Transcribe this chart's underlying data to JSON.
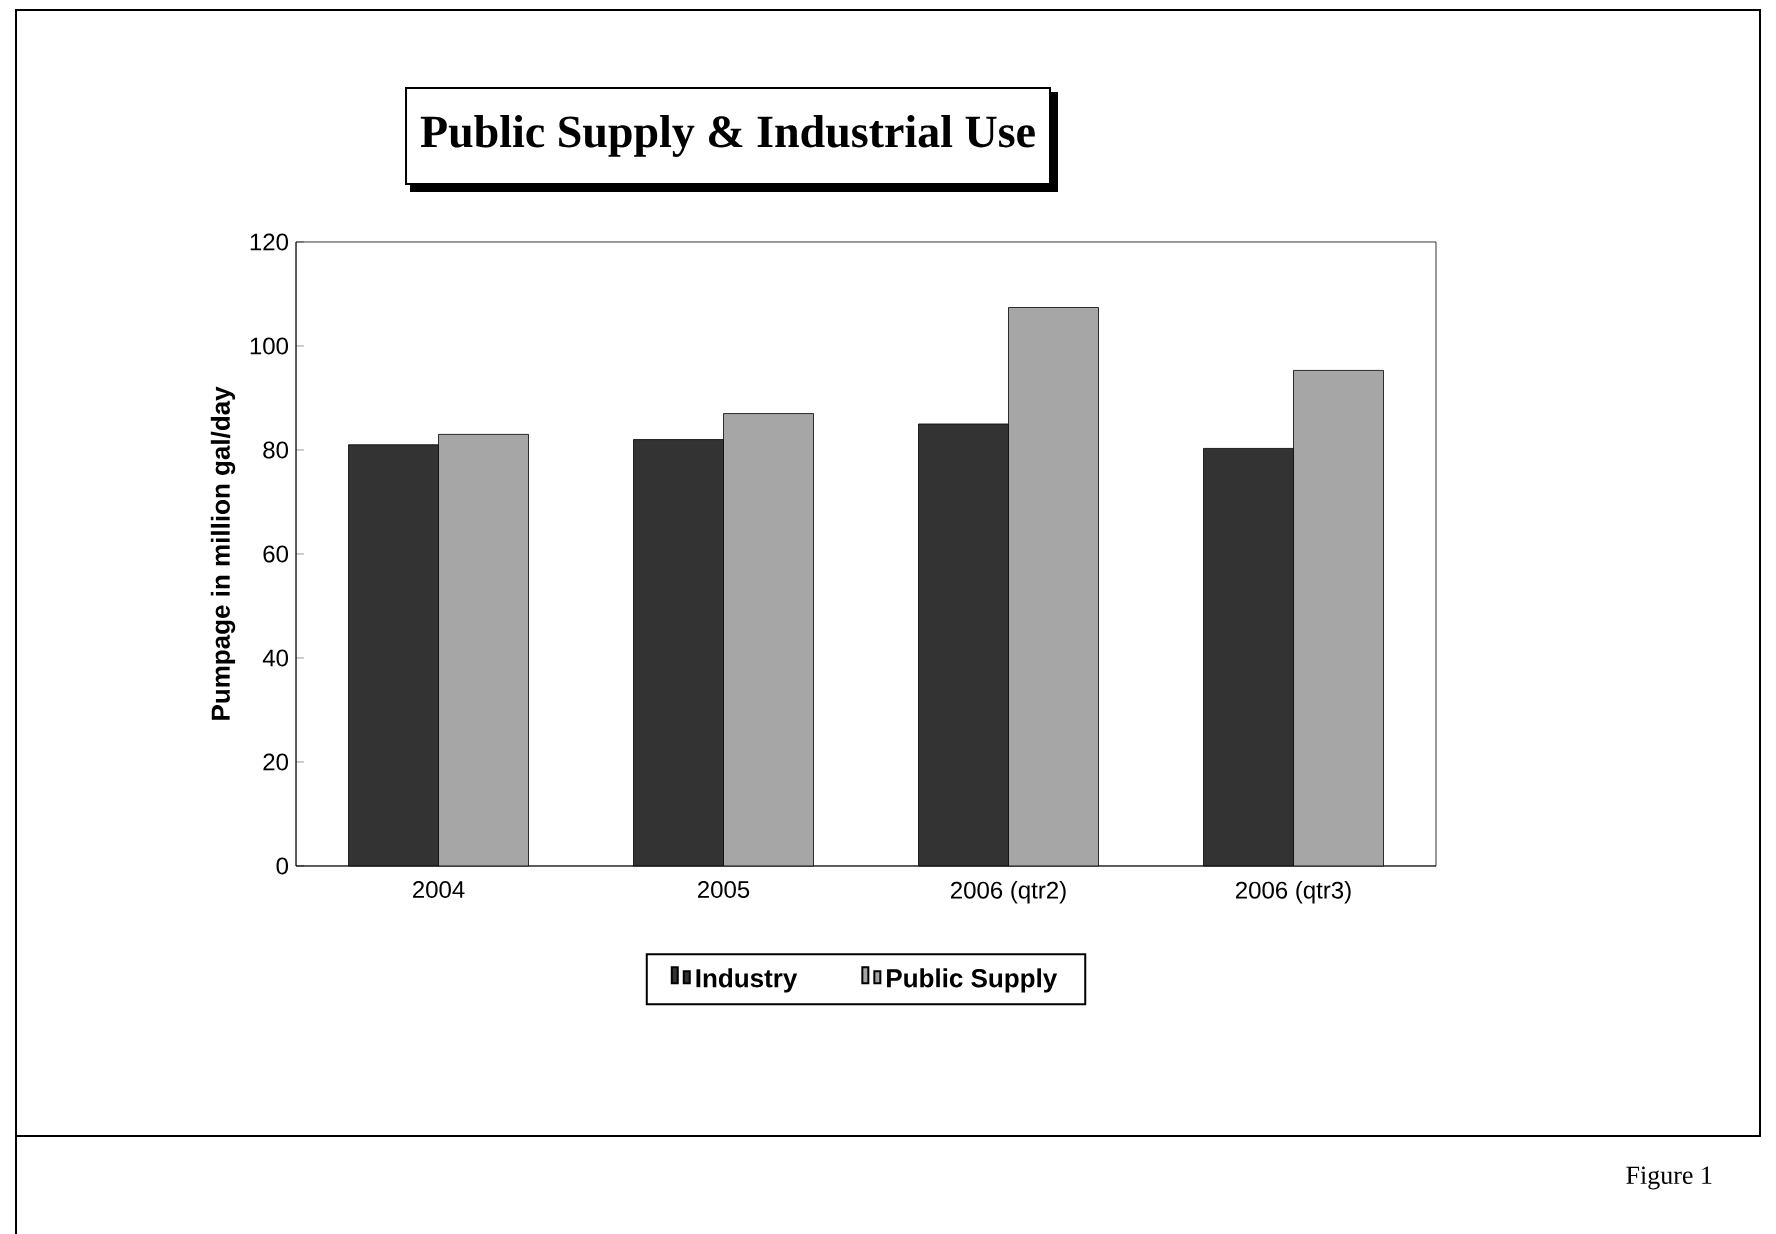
{
  "chart_data": {
    "type": "bar",
    "title": "Public Supply & Industrial Use",
    "ylabel": "Pumpage in million gal/day",
    "categories": [
      "2004",
      "2005",
      "2006 (qtr2)",
      "2006 (qtr3)"
    ],
    "series": [
      {
        "name": "Industry",
        "color": "#333333",
        "values": [
          81,
          82,
          85,
          80.3
        ]
      },
      {
        "name": "Public Supply",
        "color": "#a6a6a6",
        "values": [
          83,
          87,
          107.4,
          95.3
        ]
      }
    ],
    "ylim": [
      0,
      120
    ],
    "yticks": [
      0,
      20,
      40,
      60,
      80,
      100,
      120
    ],
    "grid": false,
    "legend": "bottom",
    "annotations": [
      "Figure 1"
    ]
  }
}
